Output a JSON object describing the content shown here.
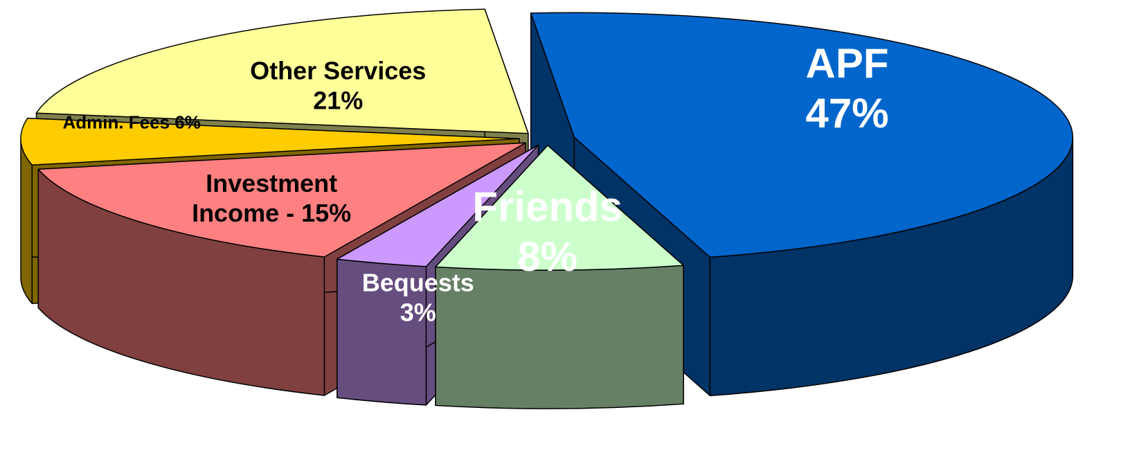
{
  "chart_data": {
    "type": "pie3d",
    "values": [
      47,
      8,
      3,
      15,
      6,
      21
    ],
    "value_labels": [
      [
        "APF",
        "47%"
      ],
      [
        "Friends",
        "8%"
      ],
      [
        "Bequests",
        "3%"
      ],
      [
        "Investment",
        "Income - 15%"
      ],
      [
        "Admin. Fees 6%"
      ],
      [
        "Other Services",
        "21%"
      ]
    ],
    "colors": [
      "#0066cc",
      "#ccffcc",
      "#cc99ff",
      "#ff8080",
      "#ffcc00",
      "#ffff99"
    ]
  }
}
